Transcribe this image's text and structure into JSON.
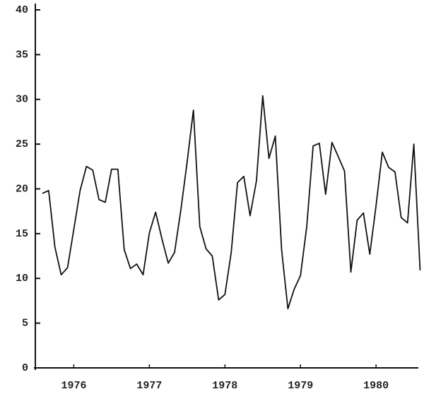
{
  "chart_data": {
    "type": "line",
    "x": [
      1976.083,
      1976.167,
      1976.25,
      1976.333,
      1976.417,
      1976.5,
      1976.583,
      1976.667,
      1976.75,
      1976.833,
      1976.917,
      1977,
      1977.083,
      1977.167,
      1977.25,
      1977.333,
      1977.417,
      1977.5,
      1977.583,
      1977.667,
      1977.75,
      1977.833,
      1977.917,
      1978,
      1978.083,
      1978.167,
      1978.25,
      1978.333,
      1978.417,
      1978.5,
      1978.583,
      1978.667,
      1978.75,
      1978.833,
      1978.917,
      1979,
      1979.083,
      1979.167,
      1979.25,
      1979.333,
      1979.417,
      1979.5,
      1979.583,
      1979.667,
      1979.75,
      1979.833,
      1979.917,
      1980,
      1980.083,
      1980.167,
      1980.25,
      1980.333,
      1980.417,
      1980.5,
      1980.583,
      1980.667,
      1980.75,
      1980.833,
      1980.917,
      1981,
      1981.083
    ],
    "series": [
      {
        "color": "#111111",
        "values": [
          19.5,
          19.8,
          13.5,
          10.4,
          11.2,
          15.5,
          19.8,
          22.5,
          22.1,
          18.8,
          18.5,
          22.2,
          22.2,
          13.2,
          11.1,
          11.6,
          10.4,
          15.1,
          17.4,
          14.4,
          11.7,
          12.9,
          17.7,
          23,
          28.8,
          15.8,
          13.3,
          12.5,
          7.6,
          8.2,
          12.9,
          20.7,
          21.4,
          17,
          20.9,
          30.4,
          23.4,
          25.9,
          13.2,
          6.6,
          8.8,
          10.3,
          15.8,
          24.8,
          25.1,
          19.4,
          25.2,
          23.6,
          22,
          10.7,
          16.5,
          17.3,
          12.7,
          18.1,
          24.1,
          22.4,
          21.9,
          16.8,
          16.2,
          25,
          10.9
        ]
      }
    ],
    "xlim": [
      1976,
      1981.06
    ],
    "xticks": [
      {
        "value": 1976.5,
        "label": "1976"
      },
      {
        "value": 1977.5,
        "label": "1977"
      },
      {
        "value": 1978.5,
        "label": "1978"
      },
      {
        "value": 1979.5,
        "label": "1979"
      },
      {
        "value": 1980.5,
        "label": "1980"
      }
    ],
    "ylim": [
      0,
      40
    ],
    "yticks": [
      0,
      5,
      10,
      15,
      20,
      25,
      30,
      35,
      40
    ],
    "grid": false
  }
}
